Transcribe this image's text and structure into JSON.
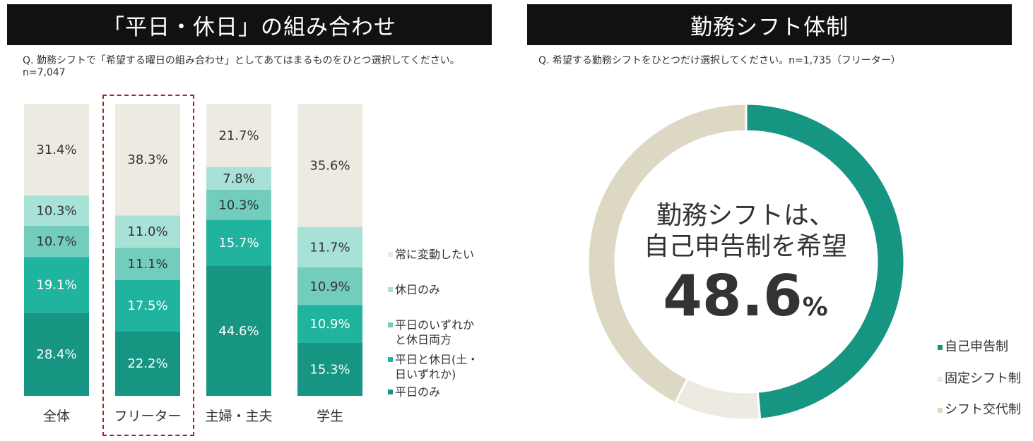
{
  "left_panel": {
    "title": "「平日・休日」の組み合わせ",
    "question": "Q. 勤務シフトで「希望する曜日の組み合わせ」としてあてはまるものをひとつ選択してください。",
    "sample": "n=7,047"
  },
  "right_panel": {
    "title": "勤務シフト体制",
    "question": "Q. 希望する勤務シフトをひとつだけ選択してください。n=1,735（フリーター）",
    "center_line1": "勤務シフトは、",
    "center_line2": "自己申告制を希望",
    "center_value": "48.6",
    "center_unit": "%"
  },
  "colors": {
    "always_change": "#edebe1",
    "holiday_only": "#a8e2d6",
    "weekday_or_holiday": "#72cdbd",
    "weekday_and_holiday": "#20b39d",
    "weekday_only": "#169582",
    "self_report": "#169582",
    "fixed_shift": "#edebe1",
    "rotation_shift": "#dcd8c4",
    "highlight": "#b22222"
  },
  "chart_data": [
    {
      "type": "bar",
      "stacked": true,
      "categories": [
        "全体",
        "フリーター",
        "主婦・主夫",
        "学生"
      ],
      "series": [
        {
          "name": "平日のみ",
          "values": [
            28.4,
            22.2,
            44.6,
            15.3
          ],
          "labels": [
            "28.4%",
            "22.2%",
            "44.6%",
            "15.3%"
          ]
        },
        {
          "name": "平日と休日(土・日いずれか)",
          "values": [
            19.1,
            17.5,
            15.7,
            10.9
          ],
          "labels": [
            "19.1%",
            "17.5%",
            "15.7%",
            "10.9%"
          ]
        },
        {
          "name": "平日のいずれかと休日両方",
          "values": [
            10.7,
            11.1,
            10.3,
            10.9
          ],
          "labels": [
            "10.7%",
            "11.1%",
            "10.3%",
            "10.9%"
          ]
        },
        {
          "name": "休日のみ",
          "values": [
            10.3,
            11.0,
            7.8,
            11.7
          ],
          "labels": [
            "10.3%",
            "11.0%",
            "7.8%",
            "11.7%"
          ]
        },
        {
          "name": "常に変動したい",
          "values": [
            31.4,
            38.3,
            21.7,
            35.6
          ],
          "labels": [
            "31.4%",
            "38.3%",
            "21.7%",
            "35.6%"
          ]
        }
      ],
      "legend_lines": [
        [
          "常に変動したい"
        ],
        [
          "休日のみ"
        ],
        [
          "平日のいずれか",
          "と休日両方"
        ],
        [
          "平日と休日(土・",
          "日いずれか)"
        ],
        [
          "平日のみ"
        ]
      ],
      "highlighted_category": "フリーター",
      "ylim": [
        0,
        100
      ],
      "grid": false,
      "legend": "right"
    },
    {
      "type": "pie",
      "donut": true,
      "slices": [
        {
          "name": "自己申告制",
          "value": 48.6
        },
        {
          "name": "固定シフト制",
          "value": 8.8
        },
        {
          "name": "シフト交代制",
          "value": 42.6
        }
      ],
      "legend": "bottom-right"
    }
  ]
}
